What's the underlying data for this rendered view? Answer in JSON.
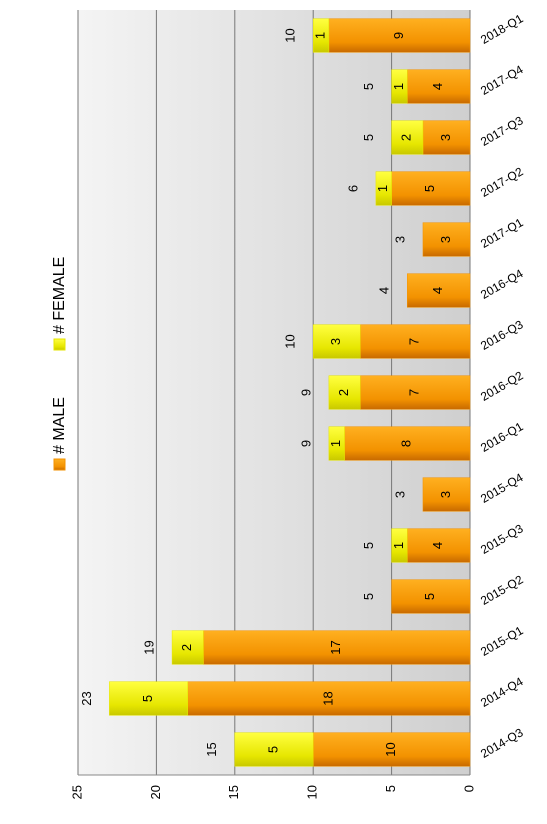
{
  "chart_data": {
    "type": "stacked-bar",
    "categories": [
      "2014-Q3",
      "2014-Q4",
      "2015-Q1",
      "2015-Q2",
      "2015-Q3",
      "2015-Q4",
      "2016-Q1",
      "2016-Q2",
      "2016-Q3",
      "2016-Q4",
      "2017-Q1",
      "2017-Q2",
      "2017-Q3",
      "2017-Q4",
      "2018-Q1"
    ],
    "series": [
      {
        "name": "# MALE",
        "color": "#f39200",
        "values": [
          10,
          18,
          17,
          5,
          4,
          3,
          8,
          7,
          7,
          4,
          3,
          5,
          3,
          4,
          9
        ]
      },
      {
        "name": "# FEMALE",
        "color": "#e6e600",
        "values": [
          5,
          5,
          2,
          null,
          1,
          null,
          1,
          2,
          3,
          null,
          null,
          1,
          2,
          1,
          1
        ]
      }
    ],
    "totals": [
      15,
      23,
      19,
      5,
      5,
      3,
      9,
      9,
      10,
      4,
      3,
      6,
      5,
      5,
      10
    ],
    "ylim": [
      0,
      25
    ],
    "yticks": [
      0,
      5,
      10,
      15,
      20,
      25
    ],
    "grid": true
  }
}
